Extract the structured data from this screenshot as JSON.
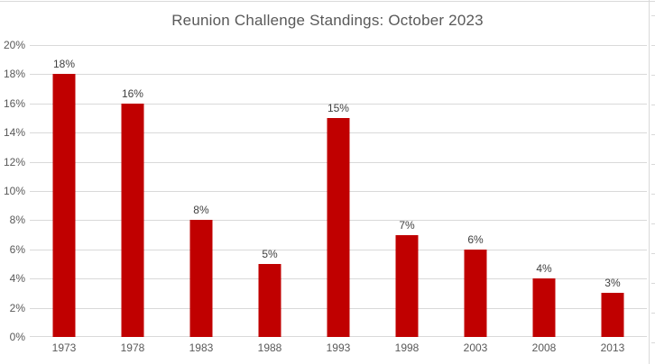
{
  "chart_data": {
    "type": "bar",
    "title": "Reunion Challenge Standings: October 2023",
    "categories": [
      "1973",
      "1978",
      "1983",
      "1988",
      "1993",
      "1998",
      "2003",
      "2008",
      "2013"
    ],
    "values": [
      18,
      16,
      8,
      5,
      15,
      7,
      6,
      4,
      3
    ],
    "data_labels": [
      "18%",
      "16%",
      "8%",
      "5%",
      "15%",
      "7%",
      "6%",
      "4%",
      "3%"
    ],
    "xlabel": "",
    "ylabel": "",
    "ylim": [
      0,
      20
    ],
    "ytick_step": 2,
    "ytick_suffix": "%",
    "ytick_labels": [
      "0%",
      "2%",
      "4%",
      "6%",
      "8%",
      "10%",
      "12%",
      "14%",
      "16%",
      "18%",
      "20%"
    ],
    "grid": true,
    "legend_position": "none",
    "colors": {
      "bar": "#C00000",
      "gridline": "#D9D9D9",
      "axis_line": "#D9D9D9",
      "axis_text": "#595959",
      "data_label_text": "#404040",
      "title_text": "#595959",
      "background": "#FFFFFF",
      "sheet_gridline": "#D9D9D9"
    }
  }
}
